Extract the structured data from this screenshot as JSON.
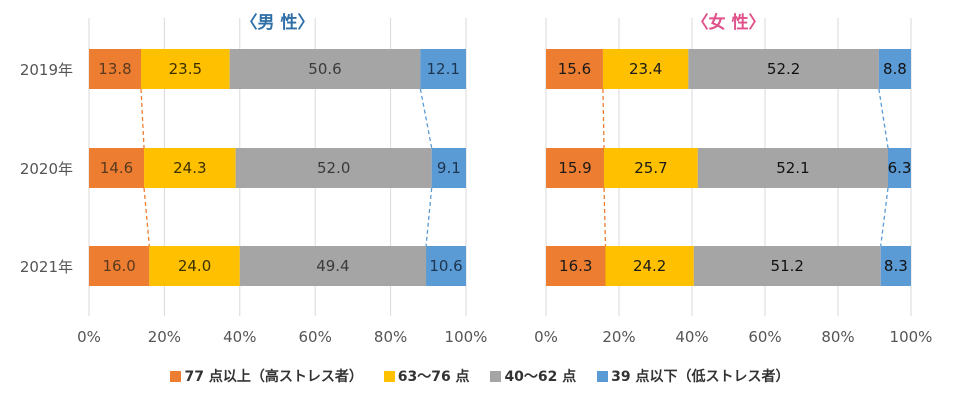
{
  "chart_data": [
    {
      "type": "bar",
      "orientation": "horizontal",
      "stacked": true,
      "title": "〈男 性〉",
      "categories": [
        "2019年",
        "2020年",
        "2021年"
      ],
      "series": [
        {
          "name": "77 点以上（高ストレス者）",
          "values": [
            13.8,
            14.6,
            16.0
          ]
        },
        {
          "name": "63～76 点",
          "values": [
            23.5,
            24.3,
            24.0
          ]
        },
        {
          "name": "40～62 点",
          "values": [
            50.6,
            52.0,
            49.4
          ]
        },
        {
          "name": "39 点以下（低ストレス者）",
          "values": [
            12.1,
            9.1,
            10.6
          ]
        }
      ],
      "value_labels": [
        [
          "13.8",
          "14.6",
          "16.0"
        ],
        [
          "23.5",
          "24.3",
          "24.0"
        ],
        [
          "50.6",
          "52.0",
          "49.4"
        ],
        [
          "12.1",
          "9.1",
          "10.6"
        ]
      ],
      "xlim": [
        0,
        100
      ],
      "xticks": [
        "0%",
        "20%",
        "40%",
        "60%",
        "80%",
        "100%"
      ],
      "grid": true
    },
    {
      "type": "bar",
      "orientation": "horizontal",
      "stacked": true,
      "title": "〈女 性〉",
      "categories": [
        "2019年",
        "2020年",
        "2021年"
      ],
      "series": [
        {
          "name": "77 点以上（高ストレス者）",
          "values": [
            15.6,
            15.9,
            16.3
          ]
        },
        {
          "name": "63～76 点",
          "values": [
            23.4,
            25.7,
            24.2
          ]
        },
        {
          "name": "40～62 点",
          "values": [
            52.2,
            52.1,
            51.2
          ]
        },
        {
          "name": "39 点以下（低ストレス者）",
          "values": [
            8.8,
            6.3,
            8.3
          ]
        }
      ],
      "value_labels": [
        [
          "15.6",
          "15.9",
          "16.3"
        ],
        [
          "23.4",
          "25.7",
          "24.2"
        ],
        [
          "52.2",
          "52.1",
          "51.2"
        ],
        [
          "8.8",
          "6.3",
          "8.3"
        ]
      ],
      "xlim": [
        0,
        100
      ],
      "xticks": [
        "0%",
        "20%",
        "40%",
        "60%",
        "80%",
        "100%"
      ],
      "grid": true
    }
  ],
  "legend": [
    {
      "label": "77 点以上（高ストレス者）",
      "color": "#ed7d31"
    },
    {
      "label": "63～76 点",
      "color": "#ffc000"
    },
    {
      "label": "40～62 点",
      "color": "#a5a5a5"
    },
    {
      "label": "39 点以下（低ストレス者）",
      "color": "#5b9bd5"
    }
  ],
  "colors": {
    "series": [
      "#ed7d31",
      "#ffc000",
      "#a5a5a5",
      "#5b9bd5"
    ],
    "label_text": [
      "#5a3a1e",
      "#3a3000",
      "#3a3a3a",
      "#1e3550"
    ],
    "label_text_female": [
      "#1a1a1a",
      "#1a1a1a",
      "#111111",
      "#111111"
    ],
    "grid": "#d9d9d9",
    "title_male": "#2f6fa8",
    "title_female": "#e0508a"
  }
}
